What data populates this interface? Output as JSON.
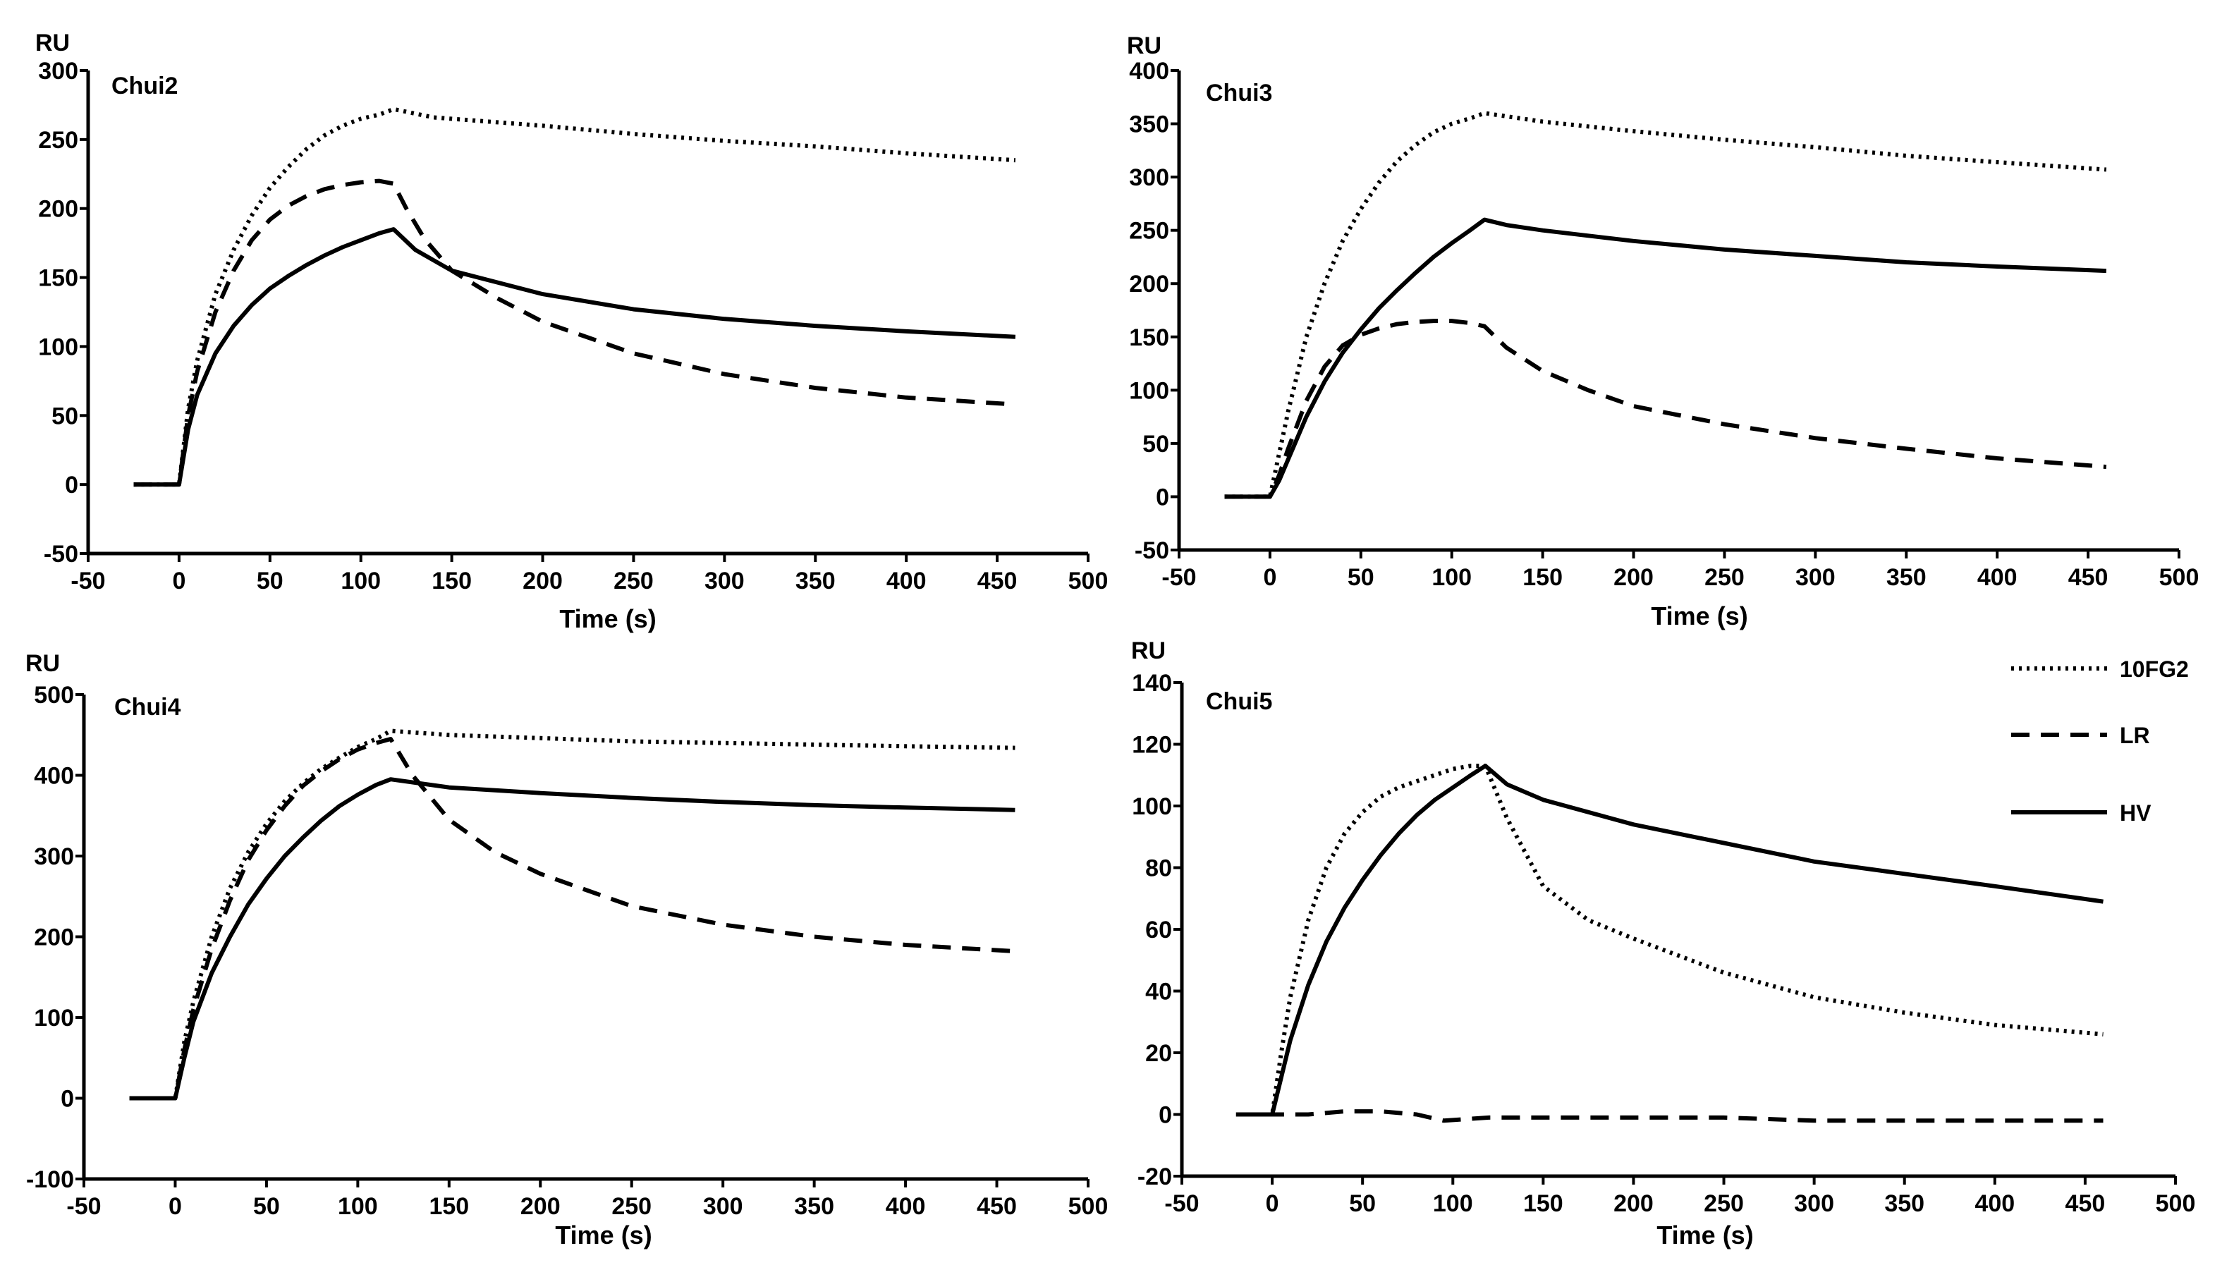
{
  "chart_data": [
    {
      "type": "line",
      "title": "Chui2",
      "unit": "RU",
      "xlabel": "Time (s)",
      "xlim": [
        -50,
        500
      ],
      "ylim": [
        -50,
        300
      ],
      "xticks": [
        -50,
        0,
        50,
        100,
        150,
        200,
        250,
        300,
        350,
        400,
        450,
        500
      ],
      "yticks": [
        -50,
        0,
        50,
        100,
        150,
        200,
        250,
        300
      ],
      "series": [
        {
          "name": "10FG2",
          "style": "dotted",
          "x": [
            -25,
            0,
            5,
            10,
            20,
            30,
            40,
            50,
            60,
            70,
            80,
            90,
            100,
            110,
            118,
            140,
            200,
            250,
            300,
            350,
            400,
            460
          ],
          "y": [
            0,
            0,
            55,
            90,
            138,
            170,
            195,
            215,
            230,
            243,
            253,
            260,
            265,
            268,
            272,
            266,
            260,
            254,
            249,
            245,
            240,
            235
          ]
        },
        {
          "name": "LR",
          "style": "dashed",
          "x": [
            -25,
            0,
            5,
            10,
            20,
            30,
            40,
            50,
            60,
            70,
            80,
            90,
            100,
            110,
            118,
            125,
            135,
            150,
            175,
            200,
            250,
            300,
            350,
            400,
            460
          ],
          "y": [
            0,
            0,
            50,
            82,
            125,
            155,
            177,
            192,
            202,
            209,
            214,
            217,
            219,
            220,
            218,
            200,
            178,
            155,
            135,
            118,
            95,
            80,
            70,
            63,
            58
          ]
        },
        {
          "name": "HV",
          "style": "solid",
          "x": [
            -25,
            0,
            5,
            10,
            20,
            30,
            40,
            50,
            60,
            70,
            80,
            90,
            100,
            110,
            118,
            130,
            150,
            200,
            250,
            300,
            350,
            400,
            460
          ],
          "y": [
            0,
            0,
            40,
            65,
            95,
            115,
            130,
            142,
            151,
            159,
            166,
            172,
            177,
            182,
            185,
            170,
            155,
            138,
            127,
            120,
            115,
            111,
            107
          ]
        }
      ]
    },
    {
      "type": "line",
      "title": "Chui3",
      "unit": "RU",
      "xlabel": "Time (s)",
      "xlim": [
        -50,
        500
      ],
      "ylim": [
        -50,
        400
      ],
      "xticks": [
        -50,
        0,
        50,
        100,
        150,
        200,
        250,
        300,
        350,
        400,
        450,
        500
      ],
      "yticks": [
        -50,
        0,
        50,
        100,
        150,
        200,
        250,
        300,
        350,
        400
      ],
      "series": [
        {
          "name": "10FG2",
          "style": "dotted",
          "x": [
            -25,
            0,
            5,
            10,
            20,
            30,
            40,
            50,
            60,
            70,
            80,
            90,
            100,
            110,
            118,
            150,
            200,
            250,
            300,
            350,
            400,
            460
          ],
          "y": [
            0,
            0,
            40,
            80,
            150,
            200,
            240,
            270,
            295,
            315,
            330,
            342,
            350,
            355,
            360,
            352,
            343,
            335,
            328,
            320,
            314,
            307
          ]
        },
        {
          "name": "LR",
          "style": "dashed",
          "x": [
            -25,
            0,
            5,
            10,
            20,
            30,
            40,
            50,
            60,
            70,
            80,
            90,
            100,
            110,
            118,
            130,
            150,
            175,
            200,
            250,
            300,
            350,
            400,
            460
          ],
          "y": [
            0,
            0,
            20,
            45,
            90,
            122,
            142,
            152,
            158,
            162,
            164,
            165,
            165,
            163,
            160,
            140,
            118,
            100,
            85,
            68,
            55,
            45,
            36,
            28
          ]
        },
        {
          "name": "HV",
          "style": "solid",
          "x": [
            -25,
            0,
            5,
            10,
            20,
            30,
            40,
            50,
            60,
            70,
            80,
            90,
            100,
            110,
            118,
            130,
            150,
            200,
            250,
            300,
            350,
            400,
            460
          ],
          "y": [
            0,
            0,
            15,
            35,
            75,
            108,
            135,
            157,
            177,
            194,
            210,
            225,
            238,
            250,
            260,
            255,
            250,
            240,
            232,
            226,
            220,
            216,
            212
          ]
        }
      ]
    },
    {
      "type": "line",
      "title": "Chui4",
      "unit": "RU",
      "xlabel": "Time (s)",
      "xlim": [
        -50,
        500
      ],
      "ylim": [
        -100,
        500
      ],
      "xticks": [
        -50,
        0,
        50,
        100,
        150,
        200,
        250,
        300,
        350,
        400,
        450,
        500
      ],
      "yticks": [
        -100,
        0,
        100,
        200,
        300,
        400,
        500
      ],
      "series": [
        {
          "name": "10FG2",
          "style": "dotted",
          "x": [
            -25,
            0,
            5,
            10,
            20,
            30,
            40,
            50,
            60,
            70,
            80,
            90,
            100,
            110,
            118,
            150,
            200,
            250,
            300,
            350,
            400,
            460
          ],
          "y": [
            0,
            0,
            70,
            120,
            200,
            260,
            305,
            340,
            368,
            390,
            408,
            422,
            435,
            445,
            455,
            450,
            446,
            442,
            440,
            438,
            436,
            434
          ]
        },
        {
          "name": "LR",
          "style": "dashed",
          "x": [
            -25,
            0,
            5,
            10,
            20,
            30,
            40,
            50,
            60,
            70,
            80,
            90,
            100,
            110,
            118,
            130,
            150,
            175,
            200,
            250,
            300,
            350,
            400,
            460
          ],
          "y": [
            0,
            0,
            60,
            110,
            185,
            245,
            295,
            332,
            362,
            387,
            405,
            420,
            432,
            440,
            445,
            400,
            345,
            305,
            278,
            238,
            215,
            200,
            190,
            182
          ]
        },
        {
          "name": "HV",
          "style": "solid",
          "x": [
            -25,
            0,
            5,
            10,
            20,
            30,
            40,
            50,
            60,
            70,
            80,
            90,
            100,
            110,
            118,
            150,
            200,
            250,
            300,
            350,
            400,
            460
          ],
          "y": [
            0,
            0,
            50,
            95,
            155,
            200,
            240,
            272,
            300,
            323,
            344,
            362,
            376,
            388,
            395,
            385,
            378,
            372,
            367,
            363,
            360,
            357
          ]
        }
      ]
    },
    {
      "type": "line",
      "title": "Chui5",
      "unit": "RU",
      "xlabel": "Time (s)",
      "xlim": [
        -50,
        500
      ],
      "ylim": [
        -20,
        140
      ],
      "xticks": [
        -50,
        0,
        50,
        100,
        150,
        200,
        250,
        300,
        350,
        400,
        450,
        500
      ],
      "yticks": [
        -20,
        0,
        20,
        40,
        60,
        80,
        100,
        120,
        140
      ],
      "series": [
        {
          "name": "10FG2",
          "style": "dotted",
          "x": [
            -20,
            0,
            5,
            10,
            20,
            30,
            40,
            50,
            60,
            70,
            80,
            90,
            100,
            110,
            118,
            130,
            150,
            175,
            200,
            250,
            300,
            350,
            400,
            460
          ],
          "y": [
            0,
            0,
            20,
            38,
            63,
            80,
            91,
            98,
            103,
            106,
            108,
            110,
            112,
            113,
            113,
            96,
            74,
            63,
            57,
            46,
            38,
            33,
            29,
            26
          ]
        },
        {
          "name": "LR",
          "style": "dashed",
          "x": [
            -20,
            0,
            20,
            40,
            60,
            80,
            95,
            120,
            150,
            200,
            250,
            300,
            350,
            400,
            460
          ],
          "y": [
            0,
            0,
            0,
            1,
            1,
            0,
            -2,
            -1,
            -1,
            -1,
            -1,
            -2,
            -2,
            -2,
            -2
          ]
        },
        {
          "name": "HV",
          "style": "solid",
          "x": [
            -20,
            0,
            5,
            10,
            20,
            30,
            40,
            50,
            60,
            70,
            80,
            90,
            100,
            110,
            118,
            130,
            150,
            200,
            250,
            300,
            350,
            400,
            460
          ],
          "y": [
            0,
            0,
            12,
            24,
            42,
            56,
            67,
            76,
            84,
            91,
            97,
            102,
            106,
            110,
            113,
            107,
            102,
            94,
            88,
            82,
            78,
            74,
            69
          ]
        }
      ]
    }
  ],
  "legend": {
    "placement": "right of Chui5 panel",
    "entries": [
      {
        "label": "10FG2",
        "style": "dotted"
      },
      {
        "label": "LR",
        "style": "dashed"
      },
      {
        "label": "HV",
        "style": "solid"
      }
    ]
  }
}
